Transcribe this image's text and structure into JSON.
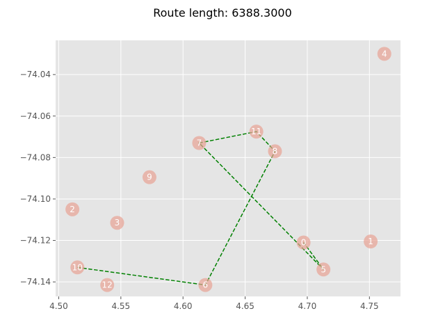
{
  "chart_data": {
    "type": "scatter",
    "title": "Route length: 6388.3000",
    "xlabel": "",
    "ylabel": "",
    "xlim": [
      4.4975,
      4.775
    ],
    "ylim": [
      -74.147,
      -74.0235
    ],
    "x_ticks": [
      4.5,
      4.55,
      4.6,
      4.65,
      4.7,
      4.75
    ],
    "x_tick_labels": [
      "4.50",
      "4.55",
      "4.60",
      "4.65",
      "4.70",
      "4.75"
    ],
    "y_ticks": [
      -74.04,
      -74.06,
      -74.08,
      -74.1,
      -74.12,
      -74.14
    ],
    "y_tick_labels": [
      "−74.04",
      "−74.06",
      "−74.08",
      "−74.10",
      "−74.12",
      "−74.14"
    ],
    "grid": true,
    "points": [
      {
        "label": "0",
        "x": 4.697,
        "y": -74.121
      },
      {
        "label": "1",
        "x": 4.751,
        "y": -74.1205
      },
      {
        "label": "2",
        "x": 4.511,
        "y": -74.105
      },
      {
        "label": "3",
        "x": 4.547,
        "y": -74.1115
      },
      {
        "label": "4",
        "x": 4.762,
        "y": -74.03
      },
      {
        "label": "5",
        "x": 4.713,
        "y": -74.134
      },
      {
        "label": "6",
        "x": 4.618,
        "y": -74.1415
      },
      {
        "label": "7",
        "x": 4.613,
        "y": -74.073
      },
      {
        "label": "8",
        "x": 4.674,
        "y": -74.077
      },
      {
        "label": "9",
        "x": 4.573,
        "y": -74.0895
      },
      {
        "label": "10",
        "x": 4.515,
        "y": -74.133
      },
      {
        "label": "11",
        "x": 4.659,
        "y": -74.0675
      },
      {
        "label": "12",
        "x": 4.539,
        "y": -74.1415
      }
    ],
    "route": [
      "10",
      "6",
      "8",
      "11",
      "7",
      "5",
      "0"
    ],
    "colors": {
      "background": "#e5e5e5",
      "grid": "#ffffff",
      "point": "#e8a294",
      "route": "#008000",
      "point_label": "#ffffff"
    }
  }
}
